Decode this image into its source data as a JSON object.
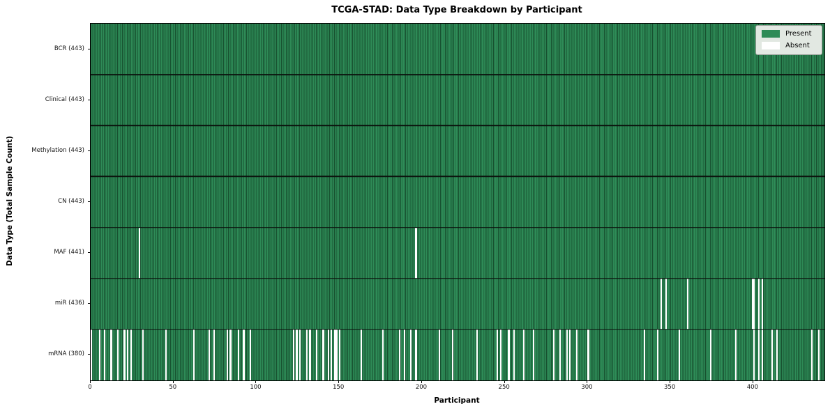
{
  "chart_data": {
    "type": "heatmap",
    "title": "TCGA-STAD: Data Type Breakdown by Participant",
    "xlabel": "Participant",
    "ylabel": "Data Type (Total Sample Count)",
    "n_participants": 443,
    "x_ticks": [
      0,
      50,
      100,
      150,
      200,
      250,
      300,
      350,
      400
    ],
    "legend": [
      "Present",
      "Absent"
    ],
    "legend_position": "upper right",
    "colors": {
      "present": "#2e8b57",
      "present_edge": "#17502f",
      "absent": "#ffffff"
    },
    "rows": [
      {
        "label": "BCR",
        "total": 443,
        "display": "BCR (443)",
        "absent": []
      },
      {
        "label": "Clinical",
        "total": 443,
        "display": "Clinical (443)",
        "absent": []
      },
      {
        "label": "Methylation",
        "total": 443,
        "display": "Methylation (443)",
        "absent": []
      },
      {
        "label": "CN",
        "total": 443,
        "display": "CN (443)",
        "absent": []
      },
      {
        "label": "MAF",
        "total": 441,
        "display": "MAF (441)",
        "absent": [
          29,
          196
        ]
      },
      {
        "label": "miR",
        "total": 436,
        "display": "miR (436)",
        "absent": [
          344,
          347,
          360,
          399,
          400,
          403,
          405
        ]
      },
      {
        "label": "mRNA",
        "total": 380,
        "display": "mRNA (380)",
        "absent": [
          0,
          5,
          8,
          12,
          16,
          20,
          22,
          24,
          31,
          45,
          62,
          71,
          74,
          82,
          84,
          89,
          92,
          96,
          122,
          124,
          126,
          130,
          132,
          136,
          140,
          143,
          145,
          147,
          148,
          150,
          163,
          176,
          186,
          189,
          193,
          196,
          210,
          218,
          233,
          245,
          247,
          252,
          255,
          261,
          267,
          279,
          283,
          287,
          289,
          293,
          300,
          334,
          342,
          355,
          374,
          389,
          400,
          403,
          405,
          411,
          414,
          435,
          439
        ]
      }
    ]
  }
}
